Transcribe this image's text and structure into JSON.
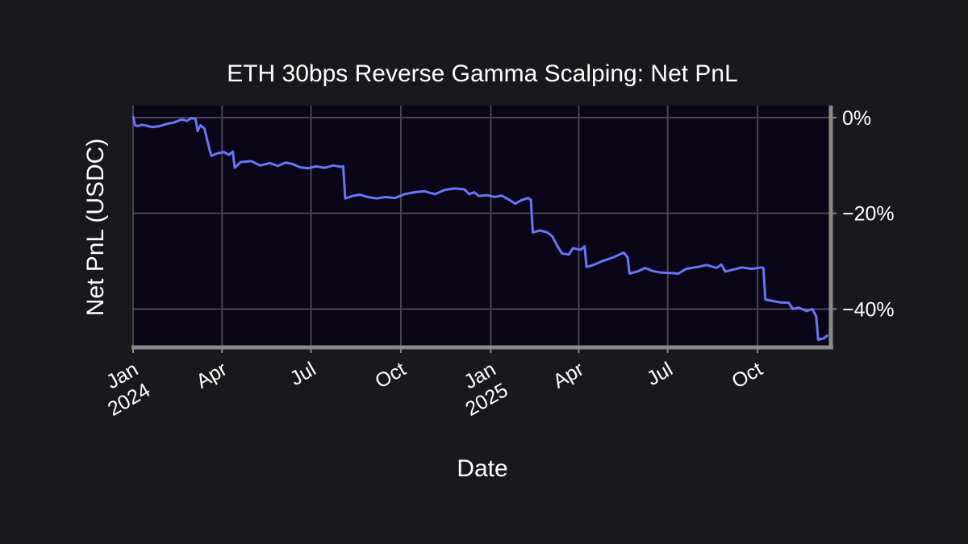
{
  "chart_data": {
    "type": "line",
    "title": "ETH 30bps Reverse Gamma Scalping: Net PnL",
    "xlabel": "Date",
    "ylabel": "Net PnL (USDC)",
    "xlim": [
      "2024-01-01",
      "2025-12-15"
    ],
    "ylim": [
      -48,
      2.5
    ],
    "grid": true,
    "y_axis_side": "right",
    "x_ticks": [
      {
        "date": "2024-01-01",
        "label": "Jan",
        "sublabel": "2024"
      },
      {
        "date": "2024-04-01",
        "label": "Apr",
        "sublabel": ""
      },
      {
        "date": "2024-07-01",
        "label": "Jul",
        "sublabel": ""
      },
      {
        "date": "2024-10-01",
        "label": "Oct",
        "sublabel": ""
      },
      {
        "date": "2025-01-01",
        "label": "Jan",
        "sublabel": "2025"
      },
      {
        "date": "2025-04-01",
        "label": "Apr",
        "sublabel": ""
      },
      {
        "date": "2025-07-01",
        "label": "Jul",
        "sublabel": ""
      },
      {
        "date": "2025-10-01",
        "label": "Oct",
        "sublabel": ""
      }
    ],
    "y_ticks": [
      {
        "value": 0,
        "label": "0%"
      },
      {
        "value": -20,
        "label": "−20%"
      },
      {
        "value": -40,
        "label": "−40%"
      }
    ],
    "colors": {
      "line": "#6a74f7",
      "plot_background": "#0a0517",
      "page_background": "#19181d",
      "grid": "#4a4650",
      "spine": "#8a8a8a"
    },
    "series": [
      {
        "points": [
          [
            "2024-01-01",
            0.3
          ],
          [
            "2024-01-03",
            -1.6
          ],
          [
            "2024-01-06",
            -1.8
          ],
          [
            "2024-01-10",
            -1.5
          ],
          [
            "2024-01-15",
            -1.7
          ],
          [
            "2024-01-20",
            -2.0
          ],
          [
            "2024-01-28",
            -1.8
          ],
          [
            "2024-02-05",
            -1.3
          ],
          [
            "2024-02-12",
            -1.0
          ],
          [
            "2024-02-20",
            -0.4
          ],
          [
            "2024-02-25",
            -0.7
          ],
          [
            "2024-03-01",
            -0.1
          ],
          [
            "2024-03-05",
            -0.3
          ],
          [
            "2024-03-07",
            -2.8
          ],
          [
            "2024-03-10",
            -1.6
          ],
          [
            "2024-03-14",
            -2.3
          ],
          [
            "2024-03-16",
            -4.0
          ],
          [
            "2024-03-19",
            -6.5
          ],
          [
            "2024-03-21",
            -8.0
          ],
          [
            "2024-03-27",
            -7.5
          ],
          [
            "2024-04-03",
            -7.2
          ],
          [
            "2024-04-08",
            -7.8
          ],
          [
            "2024-04-12",
            -7.1
          ],
          [
            "2024-04-14",
            -10.5
          ],
          [
            "2024-04-20",
            -9.3
          ],
          [
            "2024-05-01",
            -9.1
          ],
          [
            "2024-05-10",
            -10.0
          ],
          [
            "2024-05-20",
            -9.5
          ],
          [
            "2024-05-28",
            -10.1
          ],
          [
            "2024-06-05",
            -9.4
          ],
          [
            "2024-06-12",
            -9.7
          ],
          [
            "2024-06-20",
            -10.4
          ],
          [
            "2024-06-28",
            -10.6
          ],
          [
            "2024-07-06",
            -10.2
          ],
          [
            "2024-07-15",
            -10.5
          ],
          [
            "2024-07-24",
            -10.0
          ],
          [
            "2024-08-01",
            -10.3
          ],
          [
            "2024-08-03",
            -10.2
          ],
          [
            "2024-08-05",
            -16.9
          ],
          [
            "2024-08-12",
            -16.4
          ],
          [
            "2024-08-20",
            -16.1
          ],
          [
            "2024-08-28",
            -16.6
          ],
          [
            "2024-09-06",
            -16.9
          ],
          [
            "2024-09-15",
            -16.6
          ],
          [
            "2024-09-25",
            -16.8
          ],
          [
            "2024-10-05",
            -16.0
          ],
          [
            "2024-10-15",
            -15.6
          ],
          [
            "2024-10-25",
            -15.4
          ],
          [
            "2024-11-05",
            -16.0
          ],
          [
            "2024-11-15",
            -15.1
          ],
          [
            "2024-11-25",
            -14.8
          ],
          [
            "2024-12-05",
            -15.0
          ],
          [
            "2024-12-10",
            -16.0
          ],
          [
            "2024-12-15",
            -15.6
          ],
          [
            "2024-12-20",
            -16.4
          ],
          [
            "2024-12-28",
            -16.2
          ],
          [
            "2025-01-05",
            -16.6
          ],
          [
            "2025-01-12",
            -16.3
          ],
          [
            "2025-01-20",
            -17.2
          ],
          [
            "2025-01-26",
            -18.0
          ],
          [
            "2025-02-01",
            -17.3
          ],
          [
            "2025-02-08",
            -16.8
          ],
          [
            "2025-02-11",
            -17.2
          ],
          [
            "2025-02-13",
            -24.0
          ],
          [
            "2025-02-20",
            -23.6
          ],
          [
            "2025-02-28",
            -24.0
          ],
          [
            "2025-03-05",
            -24.8
          ],
          [
            "2025-03-10",
            -26.8
          ],
          [
            "2025-03-15",
            -28.4
          ],
          [
            "2025-03-22",
            -28.6
          ],
          [
            "2025-03-26",
            -27.3
          ],
          [
            "2025-04-03",
            -27.6
          ],
          [
            "2025-04-07",
            -26.9
          ],
          [
            "2025-04-09",
            -31.2
          ],
          [
            "2025-04-16",
            -30.8
          ],
          [
            "2025-04-25",
            -30.0
          ],
          [
            "2025-05-05",
            -29.3
          ],
          [
            "2025-05-12",
            -28.7
          ],
          [
            "2025-05-17",
            -28.2
          ],
          [
            "2025-05-21",
            -29.2
          ],
          [
            "2025-05-23",
            -32.6
          ],
          [
            "2025-06-01",
            -32.1
          ],
          [
            "2025-06-08",
            -31.4
          ],
          [
            "2025-06-16",
            -32.1
          ],
          [
            "2025-06-25",
            -32.4
          ],
          [
            "2025-07-05",
            -32.5
          ],
          [
            "2025-07-12",
            -32.6
          ],
          [
            "2025-07-20",
            -31.6
          ],
          [
            "2025-08-01",
            -31.2
          ],
          [
            "2025-08-10",
            -30.8
          ],
          [
            "2025-08-20",
            -31.4
          ],
          [
            "2025-08-25",
            -30.7
          ],
          [
            "2025-08-29",
            -32.2
          ],
          [
            "2025-09-05",
            -31.8
          ],
          [
            "2025-09-15",
            -31.3
          ],
          [
            "2025-09-25",
            -31.6
          ],
          [
            "2025-10-05",
            -31.3
          ],
          [
            "2025-10-07",
            -31.4
          ],
          [
            "2025-10-09",
            -38.0
          ],
          [
            "2025-10-16",
            -38.3
          ],
          [
            "2025-10-24",
            -38.6
          ],
          [
            "2025-11-02",
            -38.7
          ],
          [
            "2025-11-06",
            -40.0
          ],
          [
            "2025-11-12",
            -39.7
          ],
          [
            "2025-11-20",
            -40.4
          ],
          [
            "2025-11-26",
            -40.0
          ],
          [
            "2025-11-30",
            -41.5
          ],
          [
            "2025-12-02",
            -46.4
          ],
          [
            "2025-12-08",
            -46.1
          ],
          [
            "2025-12-12",
            -45.4
          ]
        ]
      }
    ]
  }
}
